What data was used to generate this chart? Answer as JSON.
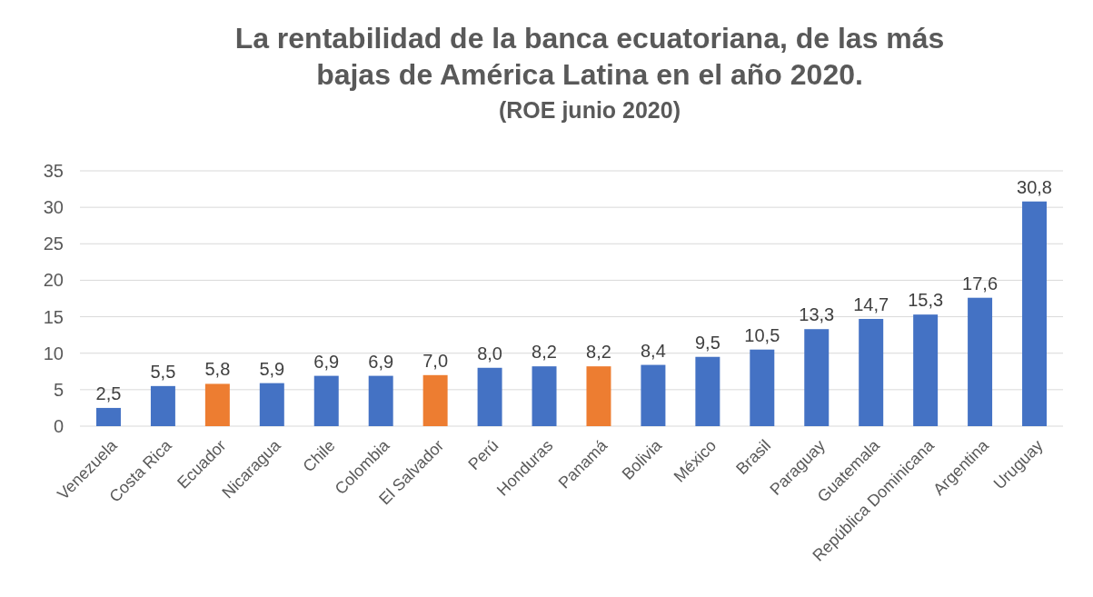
{
  "chart_data": {
    "type": "bar",
    "title": "La rentabilidad de la banca ecuatoriana, de las más bajas de América Latina en el año 2020.",
    "subtitle": "(ROE junio 2020)",
    "categories": [
      "Venezuela",
      "Costa Rica",
      "Ecuador",
      "Nicaragua",
      "Chile",
      "Colombia",
      "El Salvador",
      "Perú",
      "Honduras",
      "Panamá",
      "Bolivia",
      "México",
      "Brasil",
      "Paraguay",
      "Guatemala",
      "República Dominicana",
      "Argentina",
      "Uruguay"
    ],
    "values": [
      2.5,
      5.5,
      5.8,
      5.9,
      6.9,
      6.9,
      7.0,
      8.0,
      8.2,
      8.2,
      8.4,
      9.5,
      10.5,
      13.3,
      14.7,
      15.3,
      17.6,
      30.8
    ],
    "value_labels": [
      "2,5",
      "5,5",
      "5,8",
      "5,9",
      "6,9",
      "6,9",
      "7,0",
      "8,0",
      "8,2",
      "8,2",
      "8,4",
      "9,5",
      "10,5",
      "13,3",
      "14,7",
      "15,3",
      "17,6",
      "30,8"
    ],
    "colors": [
      "#4472c4",
      "#4472c4",
      "#ed7d31",
      "#4472c4",
      "#4472c4",
      "#4472c4",
      "#ed7d31",
      "#4472c4",
      "#4472c4",
      "#ed7d31",
      "#4472c4",
      "#4472c4",
      "#4472c4",
      "#4472c4",
      "#4472c4",
      "#4472c4",
      "#4472c4",
      "#4472c4"
    ],
    "ylim": [
      0,
      35
    ],
    "yticks": [
      0,
      5,
      10,
      15,
      20,
      25,
      30,
      35
    ],
    "grid": "y"
  }
}
